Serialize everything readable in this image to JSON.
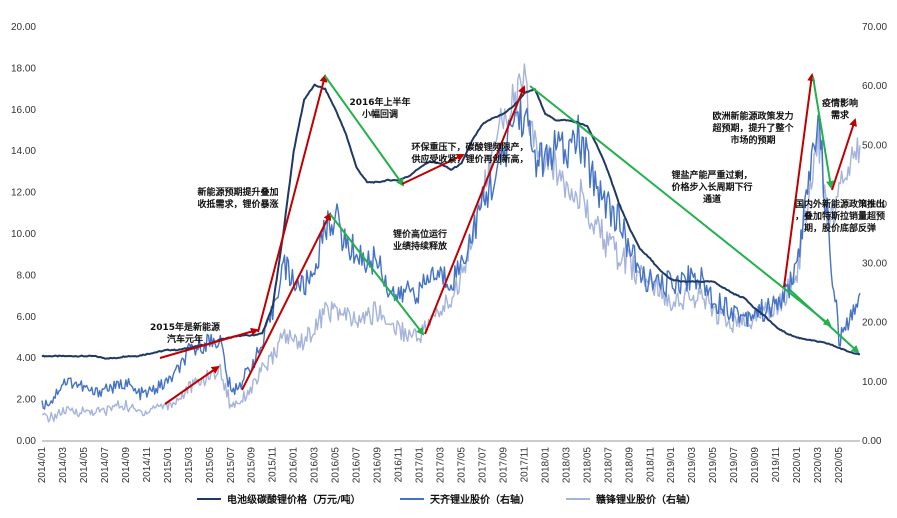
{
  "chart_data": {
    "type": "line",
    "title": "",
    "x": [
      "2014/01",
      "2014/02",
      "2014/03",
      "2014/04",
      "2014/05",
      "2014/06",
      "2014/07",
      "2014/08",
      "2014/09",
      "2014/10",
      "2014/11",
      "2014/12",
      "2015/01",
      "2015/02",
      "2015/03",
      "2015/04",
      "2015/05",
      "2015/06",
      "2015/07",
      "2015/08",
      "2015/09",
      "2015/10",
      "2015/11",
      "2015/12",
      "2016/01",
      "2016/02",
      "2016/03",
      "2016/04",
      "2016/05",
      "2016/06",
      "2016/07",
      "2016/08",
      "2016/09",
      "2016/10",
      "2016/11",
      "2016/12",
      "2017/01",
      "2017/02",
      "2017/03",
      "2017/04",
      "2017/05",
      "2017/06",
      "2017/07",
      "2017/08",
      "2017/09",
      "2017/10",
      "2017/11",
      "2017/12",
      "2018/01",
      "2018/02",
      "2018/03",
      "2018/04",
      "2018/05",
      "2018/06",
      "2018/07",
      "2018/08",
      "2018/09",
      "2018/10",
      "2018/11",
      "2018/12",
      "2019/01",
      "2019/02",
      "2019/03",
      "2019/04",
      "2019/05",
      "2019/06",
      "2019/07",
      "2019/08",
      "2019/09",
      "2019/10",
      "2019/11",
      "2019/12",
      "2020/01",
      "2020/02",
      "2020/03",
      "2020/04",
      "2020/05",
      "2020/06",
      "2020/07"
    ],
    "xticks": [
      "2014/01",
      "2014/03",
      "2014/05",
      "2014/07",
      "2014/09",
      "2014/11",
      "2015/01",
      "2015/03",
      "2015/05",
      "2015/07",
      "2015/09",
      "2015/11",
      "2016/01",
      "2016/03",
      "2016/05",
      "2016/07",
      "2016/09",
      "2016/11",
      "2017/01",
      "2017/03",
      "2017/05",
      "2017/07",
      "2017/09",
      "2017/11",
      "2018/01",
      "2018/03",
      "2018/05",
      "2018/07",
      "2018/09",
      "2018/11",
      "2019/01",
      "2019/03",
      "2019/05",
      "2019/07",
      "2019/09",
      "2019/11",
      "2020/01",
      "2020/03",
      "2020/05"
    ],
    "y_left": {
      "ylim": [
        0,
        20
      ],
      "ticks": [
        "0.00",
        "2.00",
        "4.00",
        "6.00",
        "8.00",
        "10.00",
        "12.00",
        "14.00",
        "16.00",
        "18.00",
        "20.00"
      ]
    },
    "y_right": {
      "ylim": [
        0,
        70
      ],
      "ticks": [
        "0.00",
        "10.00",
        "20.00",
        "30.00",
        "40.00",
        "50.00",
        "60.00",
        "70.00"
      ]
    },
    "grid": false,
    "legend_position": "bottom",
    "series": [
      {
        "name": "电池级碳酸锂价格（万元/吨）",
        "axis": "left",
        "color": "#1f3864",
        "values": [
          4.1,
          4.1,
          4.1,
          4.1,
          4.1,
          4.1,
          4.0,
          4.0,
          4.1,
          4.1,
          4.2,
          4.3,
          4.4,
          4.4,
          4.5,
          4.6,
          4.7,
          4.9,
          5.0,
          5.1,
          5.1,
          5.2,
          6.5,
          10.0,
          14.0,
          16.5,
          17.2,
          17.0,
          16.0,
          14.8,
          13.2,
          12.5,
          12.5,
          12.6,
          12.6,
          12.8,
          13.2,
          13.5,
          13.4,
          13.1,
          13.4,
          14.5,
          15.3,
          15.6,
          15.8,
          16.2,
          16.8,
          17.0,
          15.8,
          15.5,
          15.5,
          15.4,
          15.2,
          14.2,
          13.0,
          11.5,
          10.3,
          9.3,
          8.8,
          8.2,
          7.8,
          7.7,
          7.7,
          7.7,
          7.7,
          7.4,
          7.1,
          6.9,
          6.4,
          6.0,
          5.5,
          5.2,
          5.0,
          4.9,
          4.8,
          4.7,
          4.5,
          4.3,
          4.2
        ]
      },
      {
        "name": "天齐锂业股价（右轴）",
        "axis": "right",
        "color": "#4472c4",
        "values": [
          6,
          7,
          10,
          10,
          9,
          8,
          9,
          9,
          10,
          8,
          8,
          9,
          10,
          12,
          15,
          16,
          17,
          17,
          8,
          10,
          13,
          16,
          22,
          30,
          27,
          26,
          29,
          36,
          38,
          33,
          32,
          30,
          31,
          26,
          24,
          26,
          25,
          28,
          28,
          27,
          30,
          35,
          40,
          44,
          48,
          55,
          55,
          48,
          47,
          50,
          48,
          52,
          47,
          43,
          40,
          37,
          33,
          28,
          27,
          26,
          27,
          27,
          28,
          27,
          24,
          23,
          22,
          21,
          22,
          22,
          23,
          25,
          30,
          42,
          55,
          35,
          17,
          20,
          25
        ]
      },
      {
        "name": "赣锋锂业股价（右轴）",
        "axis": "right",
        "color": "#a5b4dc",
        "values": [
          4,
          4,
          5,
          5,
          5,
          5,
          5,
          6,
          6,
          5,
          5,
          6,
          6,
          7,
          9,
          10,
          11,
          12,
          6,
          7,
          9,
          12,
          14,
          18,
          17,
          17,
          19,
          22,
          22,
          21,
          20,
          21,
          22,
          20,
          19,
          18,
          18,
          20,
          22,
          24,
          28,
          35,
          42,
          48,
          55,
          58,
          60,
          50,
          47,
          46,
          44,
          43,
          38,
          36,
          33,
          31,
          30,
          28,
          27,
          25,
          24,
          24,
          24,
          24,
          22,
          21,
          20,
          20,
          21,
          22,
          23,
          25,
          28,
          40,
          52,
          36,
          42,
          48,
          50
        ]
      }
    ],
    "annotations": [
      {
        "lines": [
          "2015年是新能源",
          "汽车元年"
        ]
      },
      {
        "lines": [
          "新能源预期提升叠加",
          "收抵需求，锂价暴涨"
        ]
      },
      {
        "lines": [
          "2016年上半年",
          "小幅回调"
        ]
      },
      {
        "lines": [
          "锂价高位运行",
          "业绩持续释放"
        ]
      },
      {
        "lines": [
          "环保重压下，碳酸锂频限产，",
          "供应受收紧，锂价再创新高，"
        ]
      },
      {
        "lines": [
          "锂盐产能严重过剩，",
          "价格步入长周期下行",
          "通道"
        ]
      },
      {
        "lines": [
          "欧洲新能源政策发力",
          "超预期，提升了整个",
          "市场的预期"
        ]
      },
      {
        "lines": [
          "疫情影响",
          "需求"
        ]
      },
      {
        "lines": [
          "国内外新能源政策推出",
          "，叠加特斯拉销量超预",
          "期，股价底部反弹"
        ]
      }
    ]
  }
}
